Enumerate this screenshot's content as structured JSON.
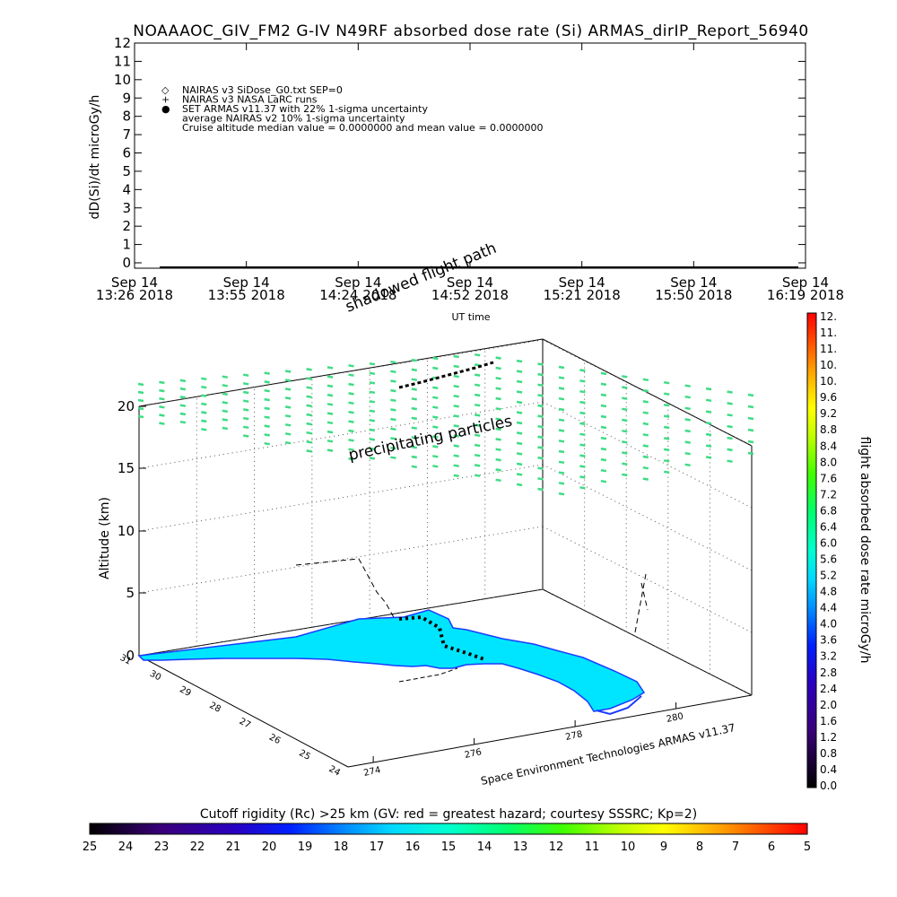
{
  "chart_data": [
    {
      "type": "line",
      "title": "NOAAAOC_GIV_FM2 G-IV   N49RF  absorbed dose rate (Si) ARMAS_dirIP_Report_56940",
      "ylabel": "dD(Si)/dt microGy/h",
      "xlabel": "UT time",
      "ylim": [
        0,
        12
      ],
      "y_ticks": [
        "0",
        "1",
        "2",
        "3",
        "4",
        "5",
        "6",
        "7",
        "8",
        "9",
        "10",
        "11",
        "12"
      ],
      "x_ticks": [
        {
          "line1": "Sep 14",
          "line2": "13:26 2018"
        },
        {
          "line1": "Sep 14",
          "line2": "13:55 2018"
        },
        {
          "line1": "Sep 14",
          "line2": "14:24 2018"
        },
        {
          "line1": "Sep 14",
          "line2": "14:52 2018"
        },
        {
          "line1": "Sep 14",
          "line2": "15:21 2018"
        },
        {
          "line1": "Sep 14",
          "line2": "15:50 2018"
        },
        {
          "line1": "Sep 14",
          "line2": "16:19 2018"
        }
      ],
      "legend": [
        {
          "symbol": "◇",
          "text": "NAIRAS v3 SiDose_G0.txt SEP=0"
        },
        {
          "symbol": "+",
          "text": "NAIRAS v3 NASA LaRC runs"
        },
        {
          "symbol": "●",
          "text": "SET ARMAS v11.37 with 22% 1-sigma uncertainty",
          "color": "#1a3cff"
        },
        {
          "symbol": "",
          "text": "average NAIRAS v2 10% 1-sigma uncertainty"
        },
        {
          "symbol": "",
          "text": "Cruise altitude median value = 0.0000000 and mean value = 0.0000000"
        }
      ],
      "series": [
        {
          "values": [
            0,
            0,
            0,
            0,
            0,
            0,
            0,
            0,
            0,
            0,
            0,
            0,
            0,
            0,
            0,
            0,
            0,
            0,
            0,
            0,
            0,
            0,
            0,
            0,
            0,
            0,
            0,
            0,
            0,
            0,
            0,
            0,
            0,
            0,
            0,
            0,
            0,
            0,
            0,
            0,
            0,
            0,
            0,
            0,
            0,
            0,
            0,
            0,
            0,
            0,
            0,
            0,
            0,
            0,
            0,
            0,
            0,
            0,
            0,
            0,
            0,
            0,
            0,
            0,
            0,
            0,
            0,
            0,
            0,
            0,
            0,
            0,
            0,
            0,
            0,
            0,
            0,
            0,
            0,
            0,
            0,
            0,
            0,
            0,
            0,
            0,
            0,
            0,
            0,
            0,
            0,
            0,
            0,
            0,
            0,
            0,
            0,
            0,
            0,
            0,
            0,
            0,
            0,
            0,
            0,
            0,
            0,
            0,
            0,
            0,
            0,
            0,
            0,
            0,
            0,
            0,
            0,
            0,
            0,
            0,
            0,
            0,
            0,
            0,
            0,
            0,
            0,
            0,
            0,
            0,
            0,
            0,
            0,
            0,
            0,
            0,
            0,
            0,
            0,
            0,
            0,
            0,
            0,
            0,
            0,
            0,
            0,
            0,
            0,
            0,
            0,
            0,
            0,
            0,
            0,
            0,
            0,
            0,
            0,
            0,
            0,
            0,
            0,
            0,
            0,
            0,
            0,
            0,
            0,
            0,
            0,
            0,
            0,
            0,
            0,
            0,
            0,
            0,
            0,
            0,
            0,
            0,
            0,
            0,
            0,
            0,
            0,
            0,
            0,
            0,
            0,
            0,
            0,
            0
          ]
        }
      ]
    },
    {
      "type": "scatter",
      "zlabel": "Altitude (km)",
      "z_ticks": [
        "0",
        "5",
        "10",
        "15",
        "20"
      ],
      "y_axis_ticks": [
        "24",
        "25",
        "26",
        "27",
        "28",
        "29",
        "30",
        "31"
      ],
      "x_axis_ticks": [
        "274",
        "276",
        "278",
        "280"
      ],
      "annotations": {
        "precipitating": "precipitating particles",
        "shadowed": "shadowed flight path",
        "credit": "Space Environment Technologies ARMAS v11.37"
      },
      "dose_colorbar": {
        "label": "flight absorbed dose rate microGy/h",
        "range": [
          0.0,
          12.0
        ],
        "ticks": [
          "0.0",
          "0.4",
          "0.8",
          "1.2",
          "1.6",
          "2.0",
          "2.4",
          "2.8",
          "3.2",
          "3.6",
          "4.0",
          "4.4",
          "4.8",
          "5.2",
          "5.6",
          "6.0",
          "6.4",
          "6.8",
          "7.2",
          "7.6",
          "8.0",
          "8.4",
          "8.8",
          "9.2",
          "9.6",
          "10.",
          "10.",
          "11.",
          "11.",
          "12."
        ]
      },
      "rigidity_colorbar": {
        "label": "Cutoff rigidity (Rc) >25 km (GV: red = greatest hazard; courtesy SSSRC; Kp=2)",
        "ticks": [
          "25",
          "24",
          "23",
          "22",
          "21",
          "20",
          "19",
          "18",
          "17",
          "16",
          "15",
          "14",
          "13",
          "12",
          "11",
          "10",
          "9",
          "8",
          "7",
          "6",
          "5"
        ]
      },
      "particle_color": "#3ddc84",
      "land_color": "#00e5ff",
      "coast_color": "#1a3cff"
    }
  ]
}
